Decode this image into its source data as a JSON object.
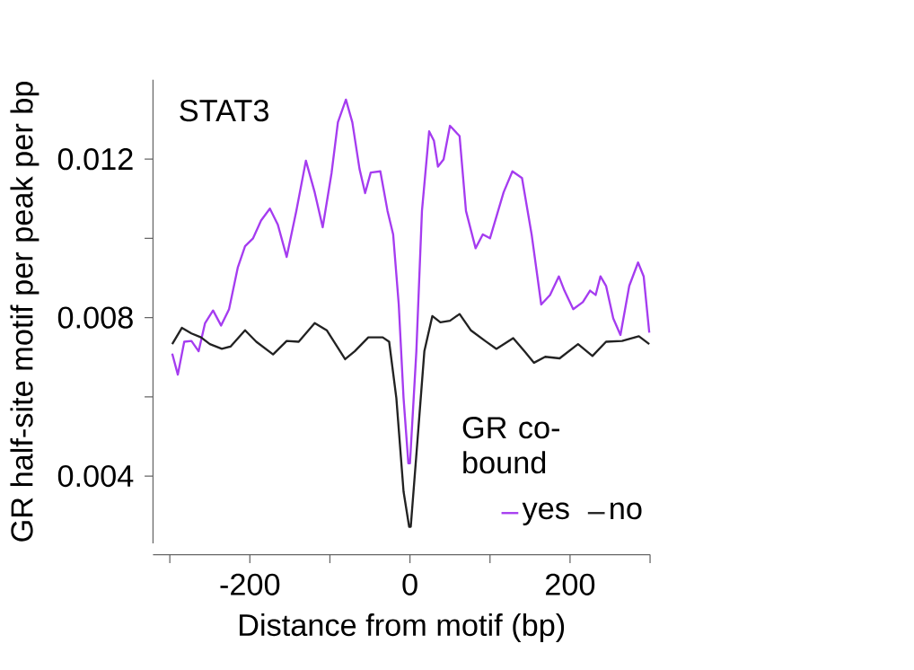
{
  "chart_data": {
    "type": "line",
    "title": "STAT3",
    "xlabel": "Distance from motif (bp)",
    "ylabel": "GR half-site motif per peak per bp",
    "legend_title": "GR co-bound",
    "legend": "bottom right",
    "xlim": [
      -321,
      300
    ],
    "ylim": [
      0.0023,
      0.014
    ],
    "xticks": [
      {
        "value": -300,
        "label": null
      },
      -200,
      {
        "value": -100,
        "label": null
      },
      0,
      {
        "value": 100,
        "label": null
      },
      200,
      {
        "value": 300,
        "label": null
      }
    ],
    "yticks": [
      0.004,
      {
        "value": 0.006,
        "label": null
      },
      0.008,
      {
        "value": 0.01,
        "label": null
      },
      0.012
    ],
    "series": [
      {
        "name": "yes",
        "color": "#a53cf0",
        "x": [
          -297,
          -290,
          -282,
          -273,
          -264,
          -256,
          -246,
          -236,
          -226,
          -215,
          -206,
          -196,
          -186,
          -175,
          -165,
          -154,
          -142,
          -130,
          -119,
          -109,
          -98,
          -90,
          -80,
          -72,
          -63,
          -56,
          -49,
          -37,
          -28,
          -21,
          -14,
          -8,
          -2,
          0,
          8,
          15,
          24,
          30,
          35,
          42,
          50,
          62,
          70,
          82,
          91,
          100,
          117,
          128,
          140,
          152,
          164,
          175,
          186,
          193,
          204,
          216,
          225,
          232,
          238,
          245,
          254,
          263,
          274,
          285,
          292,
          299
        ],
        "values": [
          0.00709,
          0.00656,
          0.00739,
          0.00741,
          0.00715,
          0.00786,
          0.00818,
          0.0078,
          0.00821,
          0.00927,
          0.0098,
          0.01,
          0.01045,
          0.01075,
          0.01034,
          0.00953,
          0.01069,
          0.01196,
          0.01116,
          0.01028,
          0.01164,
          0.01293,
          0.0135,
          0.01293,
          0.01175,
          0.01114,
          0.01166,
          0.01169,
          0.01069,
          0.0101,
          0.00833,
          0.00597,
          0.00432,
          0.00432,
          0.00715,
          0.01069,
          0.0127,
          0.01246,
          0.01181,
          0.01199,
          0.01284,
          0.01258,
          0.01069,
          0.00975,
          0.0101,
          0.01,
          0.01116,
          0.01169,
          0.01152,
          0.0101,
          0.00833,
          0.00857,
          0.00904,
          0.00868,
          0.00821,
          0.00839,
          0.00868,
          0.00857,
          0.00904,
          0.0088,
          0.00798,
          0.00756,
          0.0088,
          0.00939,
          0.00904,
          0.00762
        ]
      },
      {
        "name": "no",
        "color": "#222222",
        "x": [
          -297,
          -285,
          -273,
          -261,
          -250,
          -235,
          -224,
          -206,
          -192,
          -171,
          -154,
          -139,
          -119,
          -104,
          -81,
          -69,
          -52,
          -34,
          -26,
          -17,
          -8,
          -1,
          1,
          9,
          18,
          28,
          38,
          50,
          62,
          76,
          94,
          108,
          129,
          143,
          155,
          169,
          187,
          210,
          228,
          245,
          265,
          286,
          299
        ],
        "values": [
          0.00733,
          0.00774,
          0.0076,
          0.0075,
          0.00733,
          0.00721,
          0.00727,
          0.00768,
          0.00739,
          0.00707,
          0.00741,
          0.00739,
          0.00786,
          0.00768,
          0.00695,
          0.00715,
          0.0075,
          0.0075,
          0.00739,
          0.00597,
          0.00361,
          0.00272,
          0.00272,
          0.00479,
          0.00715,
          0.00804,
          0.00788,
          0.00792,
          0.00809,
          0.00768,
          0.00741,
          0.00721,
          0.00748,
          0.00715,
          0.00686,
          0.00701,
          0.00697,
          0.00733,
          0.00703,
          0.00739,
          0.00741,
          0.00753,
          0.00733
        ]
      }
    ]
  }
}
